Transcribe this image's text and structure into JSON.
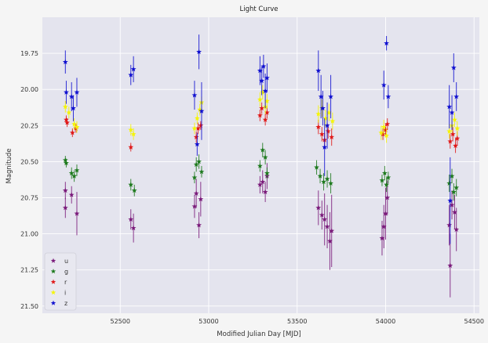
{
  "chart_data": {
    "type": "scatter",
    "title": "Light Curve",
    "xlabel": "Modified Julian Day [MJD]",
    "ylabel": "Magnitude",
    "xlim": [
      52060,
      54530
    ],
    "ylim": [
      21.55,
      19.5
    ],
    "y_inverted": true,
    "xticks": [
      52500,
      53000,
      53500,
      54000,
      54500
    ],
    "yticks": [
      19.75,
      20.0,
      20.25,
      20.5,
      20.75,
      21.0,
      21.25,
      21.5
    ],
    "xtick_labels": [
      "52500",
      "53000",
      "53500",
      "54000",
      "54500"
    ],
    "ytick_labels": [
      "19.75",
      "20.00",
      "20.25",
      "20.50",
      "20.75",
      "21.00",
      "21.25",
      "21.50"
    ],
    "grid": true,
    "legend_position": "lower-left",
    "marker": "star",
    "series": [
      {
        "name": "u",
        "color": "#7a1a7a",
        "points": [
          {
            "x": 52190,
            "y": 20.7,
            "err": 0.06
          },
          {
            "x": 52190,
            "y": 20.82,
            "err": 0.07
          },
          {
            "x": 52225,
            "y": 20.73,
            "err": 0.06
          },
          {
            "x": 52255,
            "y": 20.86,
            "err": 0.15
          },
          {
            "x": 52560,
            "y": 20.9,
            "err": 0.07
          },
          {
            "x": 52575,
            "y": 20.96,
            "err": 0.1
          },
          {
            "x": 52920,
            "y": 20.81,
            "err": 0.08
          },
          {
            "x": 52930,
            "y": 20.72,
            "err": 0.1
          },
          {
            "x": 52945,
            "y": 20.94,
            "err": 0.09
          },
          {
            "x": 52955,
            "y": 20.76,
            "err": 0.12
          },
          {
            "x": 53290,
            "y": 20.66,
            "err": 0.06
          },
          {
            "x": 53305,
            "y": 20.64,
            "err": 0.08
          },
          {
            "x": 53320,
            "y": 20.71,
            "err": 0.07
          },
          {
            "x": 53330,
            "y": 20.6,
            "err": 0.09
          },
          {
            "x": 53620,
            "y": 20.82,
            "err": 0.12
          },
          {
            "x": 53640,
            "y": 20.87,
            "err": 0.1
          },
          {
            "x": 53655,
            "y": 20.9,
            "err": 0.18
          },
          {
            "x": 53670,
            "y": 20.95,
            "err": 0.15
          },
          {
            "x": 53685,
            "y": 21.05,
            "err": 0.2
          },
          {
            "x": 53695,
            "y": 20.98,
            "err": 0.25
          },
          {
            "x": 53980,
            "y": 21.03,
            "err": 0.12
          },
          {
            "x": 53990,
            "y": 20.95,
            "err": 0.15
          },
          {
            "x": 54000,
            "y": 20.86,
            "err": 0.18
          },
          {
            "x": 54010,
            "y": 20.75,
            "err": 0.12
          },
          {
            "x": 54360,
            "y": 20.94,
            "err": 0.14
          },
          {
            "x": 54365,
            "y": 21.22,
            "err": 0.22
          },
          {
            "x": 54375,
            "y": 20.8,
            "err": 0.1
          },
          {
            "x": 54390,
            "y": 20.85,
            "err": 0.12
          },
          {
            "x": 54400,
            "y": 20.97,
            "err": 0.15
          }
        ]
      },
      {
        "name": "g",
        "color": "#1e7a1e",
        "points": [
          {
            "x": 52190,
            "y": 20.49,
            "err": 0.03
          },
          {
            "x": 52195,
            "y": 20.51,
            "err": 0.03
          },
          {
            "x": 52225,
            "y": 20.58,
            "err": 0.04
          },
          {
            "x": 52240,
            "y": 20.6,
            "err": 0.04
          },
          {
            "x": 52255,
            "y": 20.56,
            "err": 0.04
          },
          {
            "x": 52560,
            "y": 20.66,
            "err": 0.04
          },
          {
            "x": 52580,
            "y": 20.7,
            "err": 0.04
          },
          {
            "x": 52920,
            "y": 20.61,
            "err": 0.04
          },
          {
            "x": 52930,
            "y": 20.52,
            "err": 0.05
          },
          {
            "x": 52945,
            "y": 20.5,
            "err": 0.05
          },
          {
            "x": 52960,
            "y": 20.57,
            "err": 0.04
          },
          {
            "x": 53290,
            "y": 20.53,
            "err": 0.04
          },
          {
            "x": 53305,
            "y": 20.42,
            "err": 0.05
          },
          {
            "x": 53320,
            "y": 20.47,
            "err": 0.05
          },
          {
            "x": 53330,
            "y": 20.58,
            "err": 0.04
          },
          {
            "x": 53610,
            "y": 20.54,
            "err": 0.05
          },
          {
            "x": 53630,
            "y": 20.6,
            "err": 0.05
          },
          {
            "x": 53650,
            "y": 20.64,
            "err": 0.06
          },
          {
            "x": 53670,
            "y": 20.62,
            "err": 0.06
          },
          {
            "x": 53690,
            "y": 20.65,
            "err": 0.07
          },
          {
            "x": 53980,
            "y": 20.63,
            "err": 0.04
          },
          {
            "x": 53995,
            "y": 20.58,
            "err": 0.05
          },
          {
            "x": 54005,
            "y": 20.66,
            "err": 0.05
          },
          {
            "x": 54015,
            "y": 20.61,
            "err": 0.04
          },
          {
            "x": 54360,
            "y": 20.65,
            "err": 0.06
          },
          {
            "x": 54375,
            "y": 20.6,
            "err": 0.05
          },
          {
            "x": 54385,
            "y": 20.71,
            "err": 0.06
          },
          {
            "x": 54400,
            "y": 20.68,
            "err": 0.06
          }
        ]
      },
      {
        "name": "r",
        "color": "#e01818",
        "points": [
          {
            "x": 52195,
            "y": 20.21,
            "err": 0.03
          },
          {
            "x": 52200,
            "y": 20.23,
            "err": 0.03
          },
          {
            "x": 52230,
            "y": 20.3,
            "err": 0.03
          },
          {
            "x": 52250,
            "y": 20.27,
            "err": 0.03
          },
          {
            "x": 52560,
            "y": 20.4,
            "err": 0.03
          },
          {
            "x": 52930,
            "y": 20.33,
            "err": 0.04
          },
          {
            "x": 52940,
            "y": 20.27,
            "err": 0.04
          },
          {
            "x": 52955,
            "y": 20.25,
            "err": 0.03
          },
          {
            "x": 53290,
            "y": 20.18,
            "err": 0.04
          },
          {
            "x": 53300,
            "y": 20.13,
            "err": 0.04
          },
          {
            "x": 53320,
            "y": 20.21,
            "err": 0.04
          },
          {
            "x": 53330,
            "y": 20.16,
            "err": 0.04
          },
          {
            "x": 53620,
            "y": 20.26,
            "err": 0.05
          },
          {
            "x": 53640,
            "y": 20.31,
            "err": 0.05
          },
          {
            "x": 53655,
            "y": 20.35,
            "err": 0.05
          },
          {
            "x": 53675,
            "y": 20.29,
            "err": 0.05
          },
          {
            "x": 53695,
            "y": 20.33,
            "err": 0.06
          },
          {
            "x": 53985,
            "y": 20.31,
            "err": 0.04
          },
          {
            "x": 54000,
            "y": 20.28,
            "err": 0.04
          },
          {
            "x": 54010,
            "y": 20.24,
            "err": 0.04
          },
          {
            "x": 54365,
            "y": 20.36,
            "err": 0.05
          },
          {
            "x": 54380,
            "y": 20.31,
            "err": 0.05
          },
          {
            "x": 54395,
            "y": 20.39,
            "err": 0.05
          },
          {
            "x": 54405,
            "y": 20.34,
            "err": 0.05
          }
        ]
      },
      {
        "name": "i",
        "color": "#f5f500",
        "points": [
          {
            "x": 52190,
            "y": 20.12,
            "err": 0.04
          },
          {
            "x": 52210,
            "y": 20.16,
            "err": 0.04
          },
          {
            "x": 52240,
            "y": 20.24,
            "err": 0.04
          },
          {
            "x": 52255,
            "y": 20.26,
            "err": 0.04
          },
          {
            "x": 52560,
            "y": 20.28,
            "err": 0.04
          },
          {
            "x": 52575,
            "y": 20.31,
            "err": 0.04
          },
          {
            "x": 52920,
            "y": 20.27,
            "err": 0.04
          },
          {
            "x": 52935,
            "y": 20.2,
            "err": 0.04
          },
          {
            "x": 52950,
            "y": 20.14,
            "err": 0.04
          },
          {
            "x": 52960,
            "y": 20.09,
            "err": 0.04
          },
          {
            "x": 53290,
            "y": 20.07,
            "err": 0.05
          },
          {
            "x": 53305,
            "y": 20.02,
            "err": 0.05
          },
          {
            "x": 53320,
            "y": 20.12,
            "err": 0.05
          },
          {
            "x": 53330,
            "y": 20.08,
            "err": 0.05
          },
          {
            "x": 53620,
            "y": 20.17,
            "err": 0.06
          },
          {
            "x": 53640,
            "y": 20.13,
            "err": 0.06
          },
          {
            "x": 53660,
            "y": 20.2,
            "err": 0.06
          },
          {
            "x": 53680,
            "y": 20.16,
            "err": 0.06
          },
          {
            "x": 53700,
            "y": 20.22,
            "err": 0.06
          },
          {
            "x": 53975,
            "y": 20.3,
            "err": 0.05
          },
          {
            "x": 53990,
            "y": 20.26,
            "err": 0.05
          },
          {
            "x": 54005,
            "y": 20.32,
            "err": 0.05
          },
          {
            "x": 54360,
            "y": 20.29,
            "err": 0.05
          },
          {
            "x": 54375,
            "y": 20.25,
            "err": 0.05
          },
          {
            "x": 54390,
            "y": 20.21,
            "err": 0.05
          },
          {
            "x": 54405,
            "y": 20.27,
            "err": 0.05
          }
        ]
      },
      {
        "name": "z",
        "color": "#1010d0",
        "points": [
          {
            "x": 52190,
            "y": 19.81,
            "err": 0.08
          },
          {
            "x": 52195,
            "y": 20.02,
            "err": 0.08
          },
          {
            "x": 52225,
            "y": 20.05,
            "err": 0.1
          },
          {
            "x": 52235,
            "y": 20.13,
            "err": 0.09
          },
          {
            "x": 52255,
            "y": 20.02,
            "err": 0.1
          },
          {
            "x": 52560,
            "y": 19.9,
            "err": 0.07
          },
          {
            "x": 52575,
            "y": 19.86,
            "err": 0.09
          },
          {
            "x": 52920,
            "y": 20.04,
            "err": 0.1
          },
          {
            "x": 52935,
            "y": 20.38,
            "err": 0.08
          },
          {
            "x": 52945,
            "y": 19.74,
            "err": 0.12
          },
          {
            "x": 52960,
            "y": 20.15,
            "err": 0.2
          },
          {
            "x": 53290,
            "y": 19.87,
            "err": 0.1
          },
          {
            "x": 53300,
            "y": 19.94,
            "err": 0.1
          },
          {
            "x": 53310,
            "y": 19.84,
            "err": 0.08
          },
          {
            "x": 53320,
            "y": 20.01,
            "err": 0.12
          },
          {
            "x": 53330,
            "y": 19.92,
            "err": 0.1
          },
          {
            "x": 53620,
            "y": 19.87,
            "err": 0.14
          },
          {
            "x": 53635,
            "y": 20.05,
            "err": 0.15
          },
          {
            "x": 53645,
            "y": 20.13,
            "err": 0.12
          },
          {
            "x": 53655,
            "y": 20.4,
            "err": 0.2
          },
          {
            "x": 53670,
            "y": 20.25,
            "err": 0.16
          },
          {
            "x": 53690,
            "y": 20.05,
            "err": 0.15
          },
          {
            "x": 53990,
            "y": 19.97,
            "err": 0.1
          },
          {
            "x": 54005,
            "y": 19.68,
            "err": 0.05
          },
          {
            "x": 54015,
            "y": 20.05,
            "err": 0.08
          },
          {
            "x": 54360,
            "y": 20.12,
            "err": 0.15
          },
          {
            "x": 54365,
            "y": 20.77,
            "err": 0.3
          },
          {
            "x": 54375,
            "y": 20.16,
            "err": 0.12
          },
          {
            "x": 54385,
            "y": 19.85,
            "err": 0.1
          },
          {
            "x": 54400,
            "y": 20.05,
            "err": 0.1
          }
        ]
      }
    ]
  }
}
